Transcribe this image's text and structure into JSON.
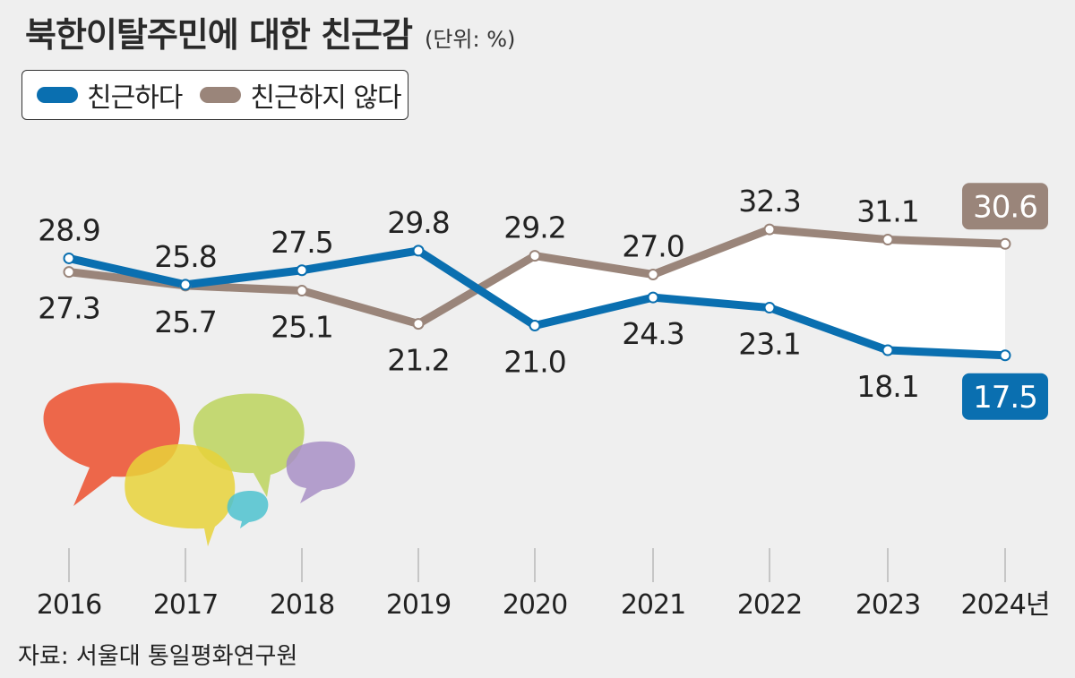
{
  "header": {
    "title": "북한이탈주민에 대한 친근감",
    "unit": "(단위: %)"
  },
  "legend": [
    {
      "label": "친근하다",
      "color": "#0a6fb0"
    },
    {
      "label": "친근하지 않다",
      "color": "#9a857a"
    }
  ],
  "footer": {
    "source": "자료: 서울대 통일평화연구원"
  },
  "illustration": {
    "icon": "speech-bubbles",
    "colors": [
      "#ec4f2d",
      "#e8d23a",
      "#bcd45d",
      "#a88fc6",
      "#4ec2cf"
    ]
  },
  "chart_data": {
    "type": "line",
    "title": "북한이탈주민에 대한 친근감",
    "unit": "(단위: %)",
    "x": [
      "2016",
      "2017",
      "2018",
      "2019",
      "2020",
      "2021",
      "2022",
      "2023",
      "2024년"
    ],
    "series": [
      {
        "name": "친근하다",
        "color": "#0a6fb0",
        "values": [
          28.9,
          25.8,
          27.5,
          29.8,
          21.0,
          24.3,
          23.1,
          18.1,
          17.5
        ]
      },
      {
        "name": "친근하지 않다",
        "color": "#9a857a",
        "values": [
          27.3,
          25.7,
          25.1,
          21.2,
          29.2,
          27.0,
          32.3,
          31.1,
          30.6
        ]
      }
    ],
    "ylim": [
      14,
      34
    ],
    "grid": "vertical",
    "fill_between": {
      "from": 3,
      "color": "#ffffff"
    },
    "highlight_last": true,
    "source": "자료: 서울대 통일평화연구원"
  }
}
